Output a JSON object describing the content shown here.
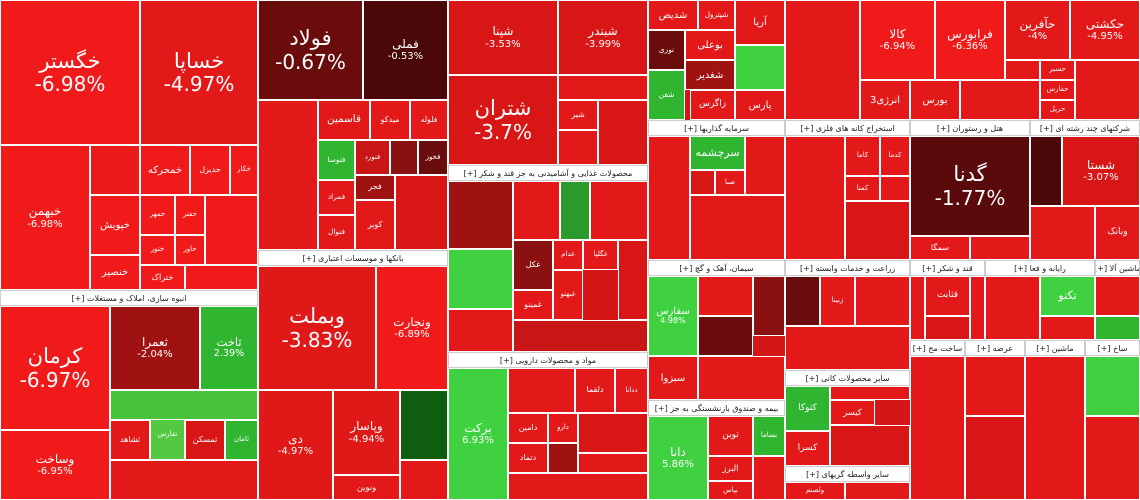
{
  "chart_data": {
    "type": "treemap",
    "groups": [
      {
        "tiles": [
          {
            "name": "خگستر",
            "value": -6.98,
            "value_label": "-6.98%",
            "color": "#f01a1a"
          },
          {
            "name": "خساپا",
            "value": -4.97,
            "value_label": "-4.97%",
            "color": "#e31818"
          },
          {
            "name": "خبهمن",
            "value": -6.98,
            "value_label": "-6.98%",
            "color": "#f01a1a"
          },
          {
            "name": "خمحرکه",
            "color": "#f01a1a"
          },
          {
            "name": "خدیزل",
            "color": "#f01a1a"
          },
          {
            "name": "خکار",
            "color": "#f01a1a"
          },
          {
            "name": "خپویش",
            "color": "#f01a1a"
          },
          {
            "name": "خمهر",
            "color": "#f01a1a"
          },
          {
            "name": "خفنر",
            "color": "#f01a1a"
          },
          {
            "name": "ختور",
            "color": "#f01a1a"
          },
          {
            "name": "خاور",
            "color": "#f01a1a"
          },
          {
            "name": "ختراک",
            "color": "#f01a1a"
          },
          {
            "name": "خنصیر",
            "color": "#f01a1a"
          },
          {
            "color": "#ea1a1a"
          },
          {
            "color": "#f01a1a"
          },
          {
            "color": "#f01a1a"
          }
        ]
      },
      {
        "title": "انبوه سازی، املاک و مستغلات [+]",
        "tiles": [
          {
            "name": "کرمان",
            "value": -6.97,
            "value_label": "-6.97%",
            "color": "#f01a1a"
          },
          {
            "name": "ثعمرا",
            "value": -2.04,
            "value_label": "-2.04%",
            "color": "#a01212"
          },
          {
            "name": "ثاخت",
            "value": 2.39,
            "value_label": "2.39%",
            "color": "#2fb52f"
          },
          {
            "name": "وساخت",
            "value": -6.95,
            "value_label": "-6.95%",
            "color": "#f01a1a"
          },
          {
            "name": "ثشاهد",
            "color": "#e31818"
          },
          {
            "name": "تفارس",
            "color": "#55c842"
          },
          {
            "name": "ثمسکن",
            "color": "#d81616"
          },
          {
            "name": "ثامان",
            "color": "#2fb52f"
          },
          {
            "color": "#48c23a"
          },
          {
            "color": "#e31818"
          }
        ]
      },
      {
        "tiles": [
          {
            "name": "فولاد",
            "value": -0.67,
            "value_label": "-0.67%",
            "color": "#6b0c0c"
          },
          {
            "name": "فملی",
            "value": -0.53,
            "value_label": "-0.53%",
            "color": "#4a0808"
          },
          {
            "name": "فلوله",
            "color": "#e31818"
          },
          {
            "name": "میدکو",
            "color": "#e31818"
          },
          {
            "name": "قاسمین",
            "color": "#e31818"
          },
          {
            "name": "فخوز",
            "color": "#6b0c0c"
          },
          {
            "name": "فنورد",
            "color": "#c81515"
          },
          {
            "name": "فتوسا",
            "color": "#2fb52f"
          },
          {
            "name": "فمراد",
            "color": "#e31818"
          },
          {
            "name": "فنوال",
            "color": "#e31818"
          },
          {
            "name": "فجر",
            "color": "#a01212"
          },
          {
            "name": "کویر",
            "color": "#e31818"
          },
          {
            "color": "#e31818"
          },
          {
            "color": "#d81616"
          },
          {
            "color": "#8b1010"
          }
        ]
      },
      {
        "title": "بانکها و موسسات اعتباری [+]",
        "tiles": [
          {
            "name": "وبملت",
            "value": -3.83,
            "value_label": "-3.83%",
            "color": "#e01818"
          },
          {
            "name": "ونجارت",
            "value": -6.89,
            "value_label": "-6.89%",
            "color": "#f01a1a"
          },
          {
            "name": "دی",
            "value": -4.97,
            "value_label": "-4.97%",
            "color": "#e01818"
          },
          {
            "name": "وپاسار",
            "value": -4.94,
            "value_label": "-4.94%",
            "color": "#e01818"
          },
          {
            "color": "#0f5e0f"
          },
          {
            "name": "ونوین",
            "color": "#e31818"
          },
          {
            "color": "#e31818"
          }
        ]
      },
      {
        "tiles": [
          {
            "name": "شپنا",
            "value": -3.53,
            "value_label": "-3.53%",
            "color": "#d81616"
          },
          {
            "name": "شبندر",
            "value": -3.99,
            "value_label": "-3.99%",
            "color": "#d81616"
          },
          {
            "name": "شتران",
            "value": -3.7,
            "value_label": "-3.7%",
            "color": "#d81616"
          },
          {
            "name": "شیر",
            "color": "#e31818"
          },
          {
            "color": "#e31818"
          },
          {
            "color": "#d81616"
          },
          {
            "color": "#e31818"
          }
        ]
      },
      {
        "title": "محصولات غذایی و آشامیدنی به جز قند و شکر [+]",
        "tiles": [
          {
            "name": "غکل",
            "color": "#8b1010"
          },
          {
            "name": "غدام",
            "color": "#e31818"
          },
          {
            "name": "غگلپا",
            "color": "#e31818"
          },
          {
            "name": "غمینو",
            "color": "#e31818"
          },
          {
            "name": "غبهنو",
            "color": "#e31818"
          },
          {
            "color": "#3fd13f"
          },
          {
            "color": "#2a9a2a"
          },
          {
            "color": "#a01212"
          },
          {
            "color": "#e31818"
          },
          {
            "color": "#e31818"
          },
          {
            "color": "#d81616"
          },
          {
            "color": "#e31818"
          },
          {
            "color": "#c81515"
          }
        ]
      },
      {
        "title": "مواد و محصولات دارویی [+]",
        "tiles": [
          {
            "name": "برکت",
            "value": 6.93,
            "value_label": "6.93%",
            "color": "#3fd13f"
          },
          {
            "name": "دلقما",
            "color": "#e31818"
          },
          {
            "name": "ددانا",
            "color": "#e31818"
          },
          {
            "name": "دامین",
            "color": "#e31818"
          },
          {
            "name": "دارو",
            "color": "#e31818"
          },
          {
            "name": "دتماد",
            "color": "#e31818"
          },
          {
            "color": "#e31818"
          },
          {
            "color": "#d81616"
          },
          {
            "color": "#e31818"
          },
          {
            "color": "#a01212"
          },
          {
            "color": "#e31818"
          }
        ]
      },
      {
        "tiles": [
          {
            "name": "شدیص",
            "color": "#e31818"
          },
          {
            "name": "شپترول",
            "color": "#e31818"
          },
          {
            "name": "بوعلی",
            "color": "#e31818"
          },
          {
            "name": "نوری",
            "color": "#6b0c0c"
          },
          {
            "name": "شغدیر",
            "color": "#a01212"
          },
          {
            "name": "زاگرس",
            "color": "#e31818"
          },
          {
            "name": "شفن",
            "color": "#2fb52f"
          },
          {
            "name": "پارس",
            "color": "#e31818"
          },
          {
            "name": "آریا",
            "color": "#e31818"
          },
          {
            "color": "#3fd13f"
          }
        ]
      },
      {
        "title": "سرمایه گذاریها [+]",
        "tiles": [
          {
            "name": "سرچشمه",
            "color": "#2fb52f"
          },
          {
            "name": "صبا",
            "color": "#e31818"
          },
          {
            "color": "#e31818"
          },
          {
            "color": "#e31818"
          },
          {
            "color": "#e31818"
          },
          {
            "color": "#d81616"
          }
        ]
      },
      {
        "title": "سیمان، آهک و گچ [+]",
        "tiles": [
          {
            "name": "سفارس",
            "value": 4.98,
            "value_label": "4.98%",
            "color": "#3fd13f"
          },
          {
            "name": "سبزوا",
            "color": "#e31818"
          },
          {
            "color": "#e31818"
          },
          {
            "color": "#8b1010"
          },
          {
            "color": "#6b0c0c"
          },
          {
            "color": "#e31818"
          }
        ]
      },
      {
        "title": "بیمه و صندوق بازنشستگی به جز [+]",
        "tiles": [
          {
            "name": "دانا",
            "value": 5.86,
            "value_label": "5.86%",
            "color": "#3fd13f"
          },
          {
            "name": "توین",
            "color": "#e31818"
          },
          {
            "name": "بساما",
            "color": "#2fb52f"
          },
          {
            "name": "البرز",
            "color": "#e31818"
          },
          {
            "name": "بپاس",
            "color": "#e31818"
          },
          {
            "color": "#e31818"
          }
        ]
      },
      {
        "tiles": [
          {
            "name": "کالا",
            "value": -6.94,
            "value_label": "-6.94%",
            "color": "#f01a1a"
          },
          {
            "name": "فرابورس",
            "value": -6.36,
            "value_label": "-6.36%",
            "color": "#f01a1a"
          },
          {
            "name": "حآفرین",
            "value": -4,
            "value_label": "-4%",
            "color": "#e31818"
          },
          {
            "name": "حکشتی",
            "value": -4.95,
            "value_label": "-4.95%",
            "color": "#e31818"
          },
          {
            "name": "بورس",
            "color": "#e31818"
          },
          {
            "name": "انرژی3",
            "color": "#e31818"
          },
          {
            "name": "حفارس",
            "color": "#e31818"
          },
          {
            "name": "حریل",
            "color": "#e31818"
          },
          {
            "name": "حسیر",
            "color": "#e31818"
          },
          {
            "color": "#e31818"
          },
          {
            "color": "#e31818"
          },
          {
            "color": "#e31818"
          },
          {
            "color": "#e31818"
          }
        ]
      },
      {
        "title": "استخراج کانه های فلزی [+]",
        "tiles": [
          {
            "name": "کدما",
            "color": "#e31818"
          },
          {
            "name": "کاما",
            "color": "#e31818"
          },
          {
            "name": "کمنا",
            "color": "#e31818"
          },
          {
            "color": "#e31818"
          },
          {
            "color": "#d81616"
          },
          {
            "color": "#e31818"
          }
        ]
      },
      {
        "title": "هتل و رستوران [+]",
        "tiles": [
          {
            "name": "گدنا",
            "value": -1.77,
            "value_label": "-1.77%",
            "color": "#5a0a0a"
          },
          {
            "name": "سمگا",
            "color": "#e31818"
          },
          {
            "color": "#e31818"
          }
        ]
      },
      {
        "title": "شرکتهای چند رشته ای [+]",
        "tiles": [
          {
            "name": "شستا",
            "value": -3.07,
            "value_label": "-3.07%",
            "color": "#d81616"
          },
          {
            "name": "وبانک",
            "color": "#e31818"
          },
          {
            "color": "#4a0808"
          },
          {
            "color": "#e31818"
          }
        ]
      },
      {
        "title": "زراعت و خدمات وابسته [+]",
        "tiles": [
          {
            "name": "زبینا",
            "color": "#e31818"
          },
          {
            "color": "#6b0c0c"
          },
          {
            "color": "#e31818"
          },
          {
            "color": "#e31818"
          }
        ]
      },
      {
        "title": "قند و شکر [+]",
        "tiles": [
          {
            "name": "قثابت",
            "color": "#e31818"
          },
          {
            "color": "#e31818"
          },
          {
            "color": "#e31818"
          },
          {
            "color": "#d81616"
          }
        ]
      },
      {
        "title": "رایانه و فعا [+]",
        "tiles": [
          {
            "color": "#e31818"
          },
          {
            "name": "تکنو",
            "color": "#3fd13f"
          },
          {
            "color": "#e31818"
          }
        ]
      },
      {
        "title": "ماشین آلا [+]",
        "tiles": [
          {
            "color": "#e31818"
          },
          {
            "color": "#2fb52f"
          }
        ]
      },
      {
        "title": "سایر محصولات کانی [+]",
        "tiles": [
          {
            "name": "کتوکا",
            "color": "#2fb52f"
          },
          {
            "name": "کیسر",
            "color": "#e31818"
          },
          {
            "name": "کسرا",
            "color": "#e31818"
          },
          {
            "color": "#e31818"
          },
          {
            "color": "#d81616"
          }
        ]
      },
      {
        "title": "سایر واسطه گریهای [+]",
        "tiles": [
          {
            "name": "ولصنم",
            "color": "#e31818"
          },
          {
            "color": "#e31818"
          }
        ]
      },
      {
        "title": "ساخت مح [+]",
        "tiles": [
          {
            "color": "#e31818"
          }
        ]
      },
      {
        "title": "عرضه [+]",
        "tiles": [
          {
            "color": "#e31818"
          },
          {
            "color": "#d81616"
          }
        ]
      },
      {
        "title": "ماشین [+]",
        "tiles": [
          {
            "color": "#e31818"
          }
        ]
      },
      {
        "title": "ساخ [+]",
        "tiles": [
          {
            "color": "#3fd13f"
          },
          {
            "color": "#e31818"
          }
        ]
      }
    ]
  }
}
